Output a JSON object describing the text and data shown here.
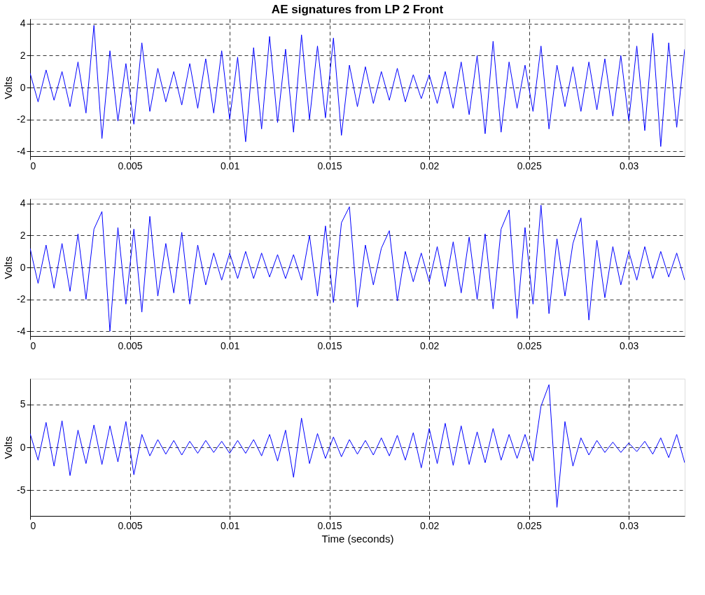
{
  "chart_data": [
    {
      "type": "line",
      "title": "AE signatures from LP 2 Front",
      "ylabel": "Volts",
      "x": [
        0,
        0.0004,
        0.0008,
        0.0012,
        0.0016,
        0.002,
        0.0024,
        0.0028,
        0.0032,
        0.0036,
        0.004,
        0.0044,
        0.0048,
        0.0052,
        0.0056,
        0.006,
        0.0064,
        0.0068,
        0.0072,
        0.0076,
        0.008,
        0.0084,
        0.0088,
        0.0092,
        0.0096,
        0.01,
        0.0104,
        0.0108,
        0.0112,
        0.0116,
        0.012,
        0.0124,
        0.0128,
        0.0132,
        0.0136,
        0.014,
        0.0144,
        0.0148,
        0.0152,
        0.0156,
        0.016,
        0.0164,
        0.0168,
        0.0172,
        0.0176,
        0.018,
        0.0184,
        0.0188,
        0.0192,
        0.0196,
        0.02,
        0.0204,
        0.0208,
        0.0212,
        0.0216,
        0.022,
        0.0224,
        0.0228,
        0.0232,
        0.0236,
        0.024,
        0.0244,
        0.0248,
        0.0252,
        0.0256,
        0.026,
        0.0264,
        0.0268,
        0.0272,
        0.0276,
        0.028,
        0.0284,
        0.0288,
        0.0292,
        0.0296,
        0.03,
        0.0304,
        0.0308,
        0.0312,
        0.0316,
        0.032,
        0.0324,
        0.0328
      ],
      "series": [
        {
          "color": "#0000ff",
          "values": [
            0.9,
            -0.9,
            1.1,
            -0.8,
            1.0,
            -1.2,
            1.6,
            -1.6,
            3.9,
            -3.2,
            2.3,
            -2.1,
            1.5,
            -2.3,
            2.8,
            -1.5,
            1.2,
            -0.9,
            1.0,
            -1.1,
            1.5,
            -1.3,
            1.8,
            -1.6,
            2.3,
            -2.0,
            1.9,
            -3.4,
            2.5,
            -2.6,
            3.2,
            -2.2,
            2.4,
            -2.8,
            3.3,
            -2.0,
            2.6,
            -1.9,
            3.1,
            -3.0,
            1.4,
            -1.2,
            1.3,
            -1.0,
            1.0,
            -0.8,
            1.2,
            -0.9,
            0.8,
            -0.7,
            0.8,
            -1.0,
            1.0,
            -1.3,
            1.6,
            -1.7,
            2.0,
            -2.9,
            2.9,
            -2.8,
            1.6,
            -1.3,
            1.4,
            -1.5,
            2.6,
            -2.6,
            1.4,
            -1.2,
            1.3,
            -1.5,
            1.6,
            -1.4,
            1.8,
            -1.8,
            2.0,
            -2.1,
            2.6,
            -2.7,
            3.4,
            -3.7,
            2.8,
            -2.5,
            2.4
          ]
        }
      ],
      "xlim": [
        0,
        0.0328
      ],
      "ylim": [
        -4.3,
        4.3
      ],
      "xticks": [
        0,
        0.005,
        0.01,
        0.015,
        0.02,
        0.025,
        0.03
      ],
      "yticks": [
        -4,
        -2,
        0,
        2,
        4
      ],
      "grid": true,
      "line_style": "solid"
    },
    {
      "type": "line",
      "ylabel": "Volts",
      "x": [
        0,
        0.0004,
        0.0008,
        0.0012,
        0.0016,
        0.002,
        0.0024,
        0.0028,
        0.0032,
        0.0036,
        0.004,
        0.0044,
        0.0048,
        0.0052,
        0.0056,
        0.006,
        0.0064,
        0.0068,
        0.0072,
        0.0076,
        0.008,
        0.0084,
        0.0088,
        0.0092,
        0.0096,
        0.01,
        0.0104,
        0.0108,
        0.0112,
        0.0116,
        0.012,
        0.0124,
        0.0128,
        0.0132,
        0.0136,
        0.014,
        0.0144,
        0.0148,
        0.0152,
        0.0156,
        0.016,
        0.0164,
        0.0168,
        0.0172,
        0.0176,
        0.018,
        0.0184,
        0.0188,
        0.0192,
        0.0196,
        0.02,
        0.0204,
        0.0208,
        0.0212,
        0.0216,
        0.022,
        0.0224,
        0.0228,
        0.0232,
        0.0236,
        0.024,
        0.0244,
        0.0248,
        0.0252,
        0.0256,
        0.026,
        0.0264,
        0.0268,
        0.0272,
        0.0276,
        0.028,
        0.0284,
        0.0288,
        0.0292,
        0.0296,
        0.03,
        0.0304,
        0.0308,
        0.0312,
        0.0316,
        0.032,
        0.0324,
        0.0328
      ],
      "series": [
        {
          "color": "#0000ff",
          "values": [
            1.2,
            -1.0,
            1.4,
            -1.3,
            1.5,
            -1.5,
            2.1,
            -2.0,
            2.4,
            3.5,
            -4.0,
            2.5,
            -2.3,
            2.4,
            -2.8,
            3.2,
            -1.8,
            1.5,
            -1.6,
            2.2,
            -2.3,
            1.4,
            -1.1,
            0.9,
            -0.8,
            0.9,
            -0.7,
            1.0,
            -0.7,
            0.9,
            -0.6,
            0.8,
            -0.7,
            0.8,
            -0.8,
            2.0,
            -1.8,
            2.6,
            -2.2,
            2.8,
            3.8,
            -2.5,
            1.4,
            -1.1,
            1.2,
            2.3,
            -2.1,
            1.0,
            -0.9,
            0.9,
            -0.9,
            1.3,
            -1.2,
            1.6,
            -1.6,
            1.9,
            -2.0,
            2.1,
            -2.6,
            2.4,
            3.6,
            -3.2,
            2.5,
            -2.3,
            3.9,
            -2.9,
            1.8,
            -1.8,
            1.5,
            3.1,
            -3.3,
            1.7,
            -1.9,
            1.3,
            -1.1,
            1.0,
            -0.8,
            1.3,
            -0.7,
            1.0,
            -0.6,
            0.9,
            -0.8
          ]
        }
      ],
      "xlim": [
        0,
        0.0328
      ],
      "ylim": [
        -4.3,
        4.3
      ],
      "xticks": [
        0,
        0.005,
        0.01,
        0.015,
        0.02,
        0.025,
        0.03
      ],
      "yticks": [
        -4,
        -2,
        0,
        2,
        4
      ],
      "grid": true,
      "line_style": "solid"
    },
    {
      "type": "line",
      "xlabel": "Time (seconds)",
      "ylabel": "Volts",
      "x": [
        0,
        0.0004,
        0.0008,
        0.0012,
        0.0016,
        0.002,
        0.0024,
        0.0028,
        0.0032,
        0.0036,
        0.004,
        0.0044,
        0.0048,
        0.0052,
        0.0056,
        0.006,
        0.0064,
        0.0068,
        0.0072,
        0.0076,
        0.008,
        0.0084,
        0.0088,
        0.0092,
        0.0096,
        0.01,
        0.0104,
        0.0108,
        0.0112,
        0.0116,
        0.012,
        0.0124,
        0.0128,
        0.0132,
        0.0136,
        0.014,
        0.0144,
        0.0148,
        0.0152,
        0.0156,
        0.016,
        0.0164,
        0.0168,
        0.0172,
        0.0176,
        0.018,
        0.0184,
        0.0188,
        0.0192,
        0.0196,
        0.02,
        0.0204,
        0.0208,
        0.0212,
        0.0216,
        0.022,
        0.0224,
        0.0228,
        0.0232,
        0.0236,
        0.024,
        0.0244,
        0.0248,
        0.0252,
        0.0256,
        0.026,
        0.0264,
        0.0268,
        0.0272,
        0.0276,
        0.028,
        0.0284,
        0.0288,
        0.0292,
        0.0296,
        0.03,
        0.0304,
        0.0308,
        0.0312,
        0.0316,
        0.032,
        0.0324,
        0.0328
      ],
      "series": [
        {
          "color": "#0000ff",
          "values": [
            1.6,
            -1.5,
            2.9,
            -2.2,
            3.1,
            -3.3,
            2.0,
            -1.9,
            2.6,
            -2.0,
            2.5,
            -1.7,
            3.0,
            -3.2,
            1.5,
            -1.0,
            0.9,
            -0.8,
            0.8,
            -0.9,
            0.7,
            -0.7,
            0.8,
            -0.6,
            0.7,
            -0.7,
            0.8,
            -0.7,
            0.9,
            -1.0,
            1.5,
            -1.6,
            2.0,
            -3.5,
            3.4,
            -1.9,
            1.6,
            -1.3,
            1.2,
            -1.1,
            0.9,
            -0.8,
            0.8,
            -0.9,
            1.1,
            -1.0,
            1.4,
            -1.5,
            1.7,
            -2.4,
            2.2,
            -1.9,
            2.8,
            -2.1,
            2.5,
            -2.0,
            1.8,
            -1.8,
            2.2,
            -1.5,
            1.5,
            -1.3,
            1.5,
            -1.6,
            4.8,
            7.3,
            -7.0,
            3.0,
            -2.2,
            1.1,
            -0.9,
            0.8,
            -0.6,
            0.6,
            -0.6,
            0.5,
            -0.5,
            0.7,
            -0.8,
            1.1,
            -1.2,
            1.5,
            -1.8
          ]
        }
      ],
      "xlim": [
        0,
        0.0328
      ],
      "ylim": [
        -8,
        8
      ],
      "xticks": [
        0,
        0.005,
        0.01,
        0.015,
        0.02,
        0.025,
        0.03
      ],
      "yticks": [
        -5,
        0,
        5
      ],
      "grid": true,
      "line_style": "solid"
    }
  ]
}
